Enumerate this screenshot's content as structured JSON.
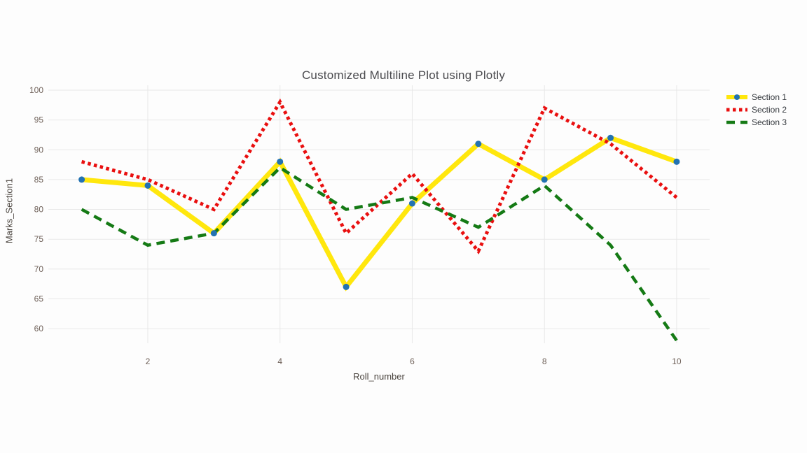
{
  "chart_data": {
    "type": "line",
    "title": "Customized Multiline Plot using Plotly",
    "xlabel": "Roll_number",
    "ylabel": "Marks_Section1",
    "x": [
      1,
      2,
      3,
      4,
      5,
      6,
      7,
      8,
      9,
      10
    ],
    "series": [
      {
        "name": "Section 1",
        "color": "#ffe70d",
        "style": "solid",
        "line_width": 7,
        "marker": {
          "shape": "circle",
          "color": "#2272b2",
          "size": 9
        },
        "values": [
          85,
          84,
          76,
          88,
          67,
          81,
          91,
          85,
          92,
          88
        ]
      },
      {
        "name": "Section 2",
        "color": "#e90f0f",
        "style": "dotted",
        "line_width": 5,
        "marker": null,
        "values": [
          88,
          85,
          80,
          98,
          76,
          86,
          73,
          97,
          91,
          82
        ]
      },
      {
        "name": "Section 3",
        "color": "#157a15",
        "style": "dashed",
        "line_width": 4.5,
        "marker": null,
        "values": [
          80,
          74,
          76,
          87,
          80,
          82,
          77,
          84,
          74,
          58
        ]
      }
    ],
    "xticks": [
      2,
      4,
      6,
      8,
      10
    ],
    "yticks": [
      60,
      65,
      70,
      75,
      80,
      85,
      90,
      95,
      100
    ],
    "xlim": [
      0.5,
      10.5
    ],
    "ylim": [
      57.4,
      100.8
    ],
    "grid": true,
    "legend_position": "top-right",
    "colors": {
      "background": "#fdfdfd",
      "grid": "#e8e8e8",
      "tick_label": "#6e6058",
      "axis_title": "#4a443e",
      "title": "#4a4a4e",
      "legend_text": "#33373c"
    }
  }
}
